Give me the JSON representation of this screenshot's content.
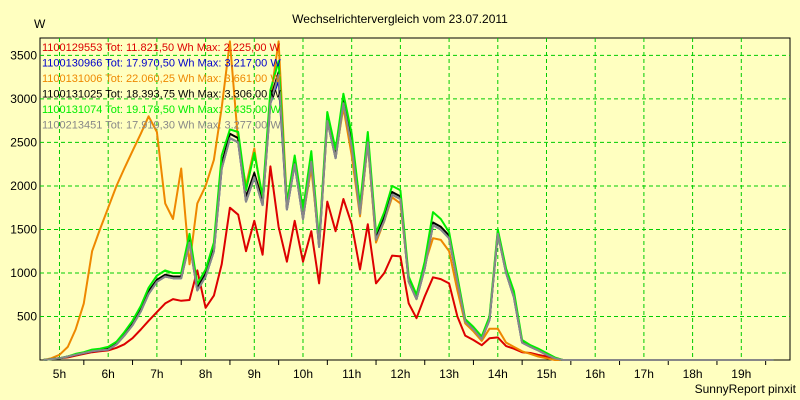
{
  "chart_data": {
    "type": "line",
    "title": "Wechselrichtervergleich vom 23.07.2011",
    "ylabel": "W",
    "xlabel": "",
    "footer": "SunnyReport pinxit",
    "ylim": [
      0,
      3700
    ],
    "xlim": [
      4.6,
      20.0
    ],
    "yticks": [
      500,
      1000,
      1500,
      2000,
      2500,
      3000,
      3500
    ],
    "xticks": [
      {
        "label": "5h",
        "value": 5
      },
      {
        "label": "6h",
        "value": 6
      },
      {
        "label": "7h",
        "value": 7
      },
      {
        "label": "8h",
        "value": 8
      },
      {
        "label": "9h",
        "value": 9
      },
      {
        "label": "10h",
        "value": 10
      },
      {
        "label": "11h",
        "value": 11
      },
      {
        "label": "12h",
        "value": 12
      },
      {
        "label": "13h",
        "value": 13
      },
      {
        "label": "14h",
        "value": 14
      },
      {
        "label": "15h",
        "value": 15
      },
      {
        "label": "16h",
        "value": 16
      },
      {
        "label": "17h",
        "value": 17
      },
      {
        "label": "18h",
        "value": 18
      },
      {
        "label": "19h",
        "value": 19
      }
    ],
    "grid": true,
    "legend_position": "top-left",
    "x": [
      4.67,
      4.83,
      5.0,
      5.17,
      5.33,
      5.5,
      5.67,
      5.83,
      6.0,
      6.17,
      6.33,
      6.5,
      6.67,
      6.83,
      7.0,
      7.17,
      7.33,
      7.5,
      7.67,
      7.83,
      8.0,
      8.17,
      8.33,
      8.5,
      8.67,
      8.83,
      9.0,
      9.17,
      9.33,
      9.5,
      9.67,
      9.83,
      10.0,
      10.17,
      10.33,
      10.5,
      10.67,
      10.83,
      11.0,
      11.17,
      11.33,
      11.5,
      11.67,
      11.83,
      12.0,
      12.17,
      12.33,
      12.5,
      12.67,
      12.83,
      13.0,
      13.17,
      13.33,
      13.5,
      13.67,
      13.83,
      14.0,
      14.17,
      14.33,
      14.5,
      14.67,
      14.83,
      15.0,
      15.17,
      15.33,
      15.5,
      15.67,
      15.83,
      16.0,
      16.17,
      16.33,
      16.5,
      16.67,
      16.83,
      17.0,
      17.17,
      17.33,
      17.5,
      17.67,
      17.83,
      18.0,
      18.17,
      18.33,
      18.5,
      18.67,
      18.83,
      19.0,
      19.17,
      19.33,
      19.5,
      19.67
    ],
    "series": [
      {
        "name": "1100129553",
        "legend": "1100129553 Tot: 11.821,50 Wh Max: 2.225,00 W",
        "color": "#dd0000",
        "values": [
          0,
          10,
          20,
          30,
          50,
          70,
          90,
          100,
          110,
          140,
          180,
          250,
          350,
          450,
          550,
          650,
          700,
          680,
          690,
          1030,
          600,
          740,
          1100,
          1750,
          1670,
          1250,
          1600,
          1210,
          2225,
          1530,
          1130,
          1600,
          1130,
          1480,
          880,
          1820,
          1480,
          1850,
          1560,
          1040,
          1560,
          880,
          1000,
          1200,
          1190,
          650,
          480,
          730,
          950,
          930,
          880,
          500,
          280,
          230,
          170,
          250,
          260,
          160,
          130,
          90,
          80,
          60,
          40,
          20,
          0,
          0,
          0,
          0,
          0,
          0,
          0,
          0,
          0,
          0,
          0,
          0,
          0,
          0,
          0,
          0,
          0,
          0,
          0,
          0,
          0,
          0,
          0,
          0,
          0,
          0,
          0
        ]
      },
      {
        "name": "1100130966",
        "legend": "1100130966 Tot: 17.970,50 Wh Max: 3.217,00 W",
        "color": "#0000cc",
        "values": [
          0,
          10,
          20,
          40,
          60,
          80,
          100,
          110,
          120,
          180,
          280,
          400,
          560,
          760,
          900,
          960,
          940,
          940,
          1350,
          800,
          960,
          1250,
          2200,
          2550,
          2500,
          1820,
          2100,
          1780,
          2950,
          3217,
          1730,
          2250,
          1620,
          2280,
          1300,
          2750,
          2320,
          2950,
          2450,
          1680,
          2500,
          1380,
          1600,
          1900,
          1850,
          900,
          700,
          1050,
          1550,
          1500,
          1400,
          900,
          440,
          350,
          240,
          460,
          1450,
          1000,
          720,
          200,
          150,
          110,
          60,
          20,
          0,
          0,
          0,
          0,
          0,
          0,
          0,
          0,
          0,
          0,
          0,
          0,
          0,
          0,
          0,
          0,
          0,
          0,
          0,
          0,
          0,
          0,
          0,
          0,
          0,
          0,
          0
        ]
      },
      {
        "name": "1100131006",
        "legend": "1100131006 Tot: 22.060,25 Wh Max: 3.661,00 W",
        "color": "#ee8800",
        "values": [
          0,
          20,
          60,
          150,
          350,
          650,
          1250,
          1500,
          1750,
          2000,
          2200,
          2400,
          2600,
          2800,
          2620,
          1800,
          1620,
          2200,
          1100,
          1800,
          2000,
          2300,
          2900,
          3661,
          2500,
          2000,
          2430,
          1800,
          3000,
          3661,
          1800,
          2300,
          1650,
          2200,
          1350,
          2750,
          2350,
          2900,
          2350,
          1650,
          2500,
          1350,
          1600,
          1870,
          1800,
          950,
          700,
          1100,
          1400,
          1380,
          1250,
          800,
          420,
          330,
          220,
          360,
          360,
          200,
          150,
          100,
          70,
          40,
          20,
          0,
          0,
          0,
          0,
          0,
          0,
          0,
          0,
          0,
          0,
          0,
          0,
          0,
          0,
          0,
          0,
          0,
          0,
          0,
          0,
          0,
          0,
          0,
          0,
          0,
          0,
          0,
          0
        ]
      },
      {
        "name": "1100131025",
        "legend": "1100131025 Tot: 18.393,75 Wh Max: 3.306,00 W",
        "color": "#000000",
        "values": [
          0,
          10,
          20,
          40,
          60,
          80,
          100,
          110,
          130,
          190,
          300,
          420,
          580,
          790,
          920,
          980,
          960,
          960,
          1380,
          830,
          990,
          1290,
          2250,
          2600,
          2550,
          1870,
          2150,
          1820,
          3000,
          3306,
          1760,
          2300,
          1660,
          2330,
          1330,
          2800,
          2370,
          3000,
          2500,
          1720,
          2550,
          1410,
          1640,
          1930,
          1880,
          930,
          720,
          1080,
          1580,
          1530,
          1430,
          920,
          450,
          360,
          250,
          470,
          1470,
          1020,
          740,
          210,
          160,
          120,
          70,
          25,
          0,
          0,
          0,
          0,
          0,
          0,
          0,
          0,
          0,
          0,
          0,
          0,
          0,
          0,
          0,
          0,
          0,
          0,
          0,
          0,
          0,
          0,
          0,
          0,
          0,
          0,
          0
        ]
      },
      {
        "name": "1100131074",
        "legend": "1100131074 Tot: 19.178,50 Wh Max: 3.435,00 W",
        "color": "#00ee00",
        "values": [
          0,
          10,
          20,
          40,
          70,
          90,
          120,
          130,
          150,
          210,
          320,
          450,
          620,
          830,
          970,
          1030,
          1000,
          1000,
          1450,
          870,
          1040,
          1350,
          2350,
          2650,
          2620,
          1950,
          2380,
          1880,
          3100,
          3435,
          1800,
          2350,
          1720,
          2400,
          1370,
          2850,
          2420,
          3060,
          2600,
          1780,
          2620,
          1460,
          1700,
          2000,
          1950,
          960,
          750,
          1130,
          1700,
          1620,
          1470,
          960,
          470,
          380,
          270,
          500,
          1500,
          1050,
          790,
          230,
          170,
          130,
          80,
          30,
          0,
          0,
          0,
          0,
          0,
          0,
          0,
          0,
          0,
          0,
          0,
          0,
          0,
          0,
          0,
          0,
          0,
          0,
          0,
          0,
          0,
          0,
          0,
          0,
          0,
          0,
          0
        ]
      },
      {
        "name": "1100213451",
        "legend": "1100213451 Tot: 17.919,30 Wh Max: 3.277,00 W",
        "color": "#888888",
        "values": [
          0,
          10,
          20,
          40,
          60,
          80,
          100,
          110,
          120,
          180,
          280,
          400,
          560,
          760,
          900,
          960,
          940,
          940,
          1350,
          800,
          960,
          1250,
          2200,
          2550,
          2500,
          1820,
          2100,
          1780,
          2950,
          3277,
          1730,
          2250,
          1620,
          2280,
          1300,
          2750,
          2320,
          2950,
          2450,
          1680,
          2500,
          1380,
          1600,
          1900,
          1850,
          900,
          700,
          1050,
          1550,
          1500,
          1400,
          900,
          440,
          350,
          240,
          460,
          1450,
          1000,
          720,
          200,
          150,
          110,
          60,
          20,
          0,
          0,
          0,
          0,
          0,
          0,
          0,
          0,
          0,
          0,
          0,
          0,
          0,
          0,
          0,
          0,
          0,
          0,
          0,
          0,
          0,
          0,
          0,
          0,
          0,
          0,
          0
        ]
      }
    ]
  }
}
